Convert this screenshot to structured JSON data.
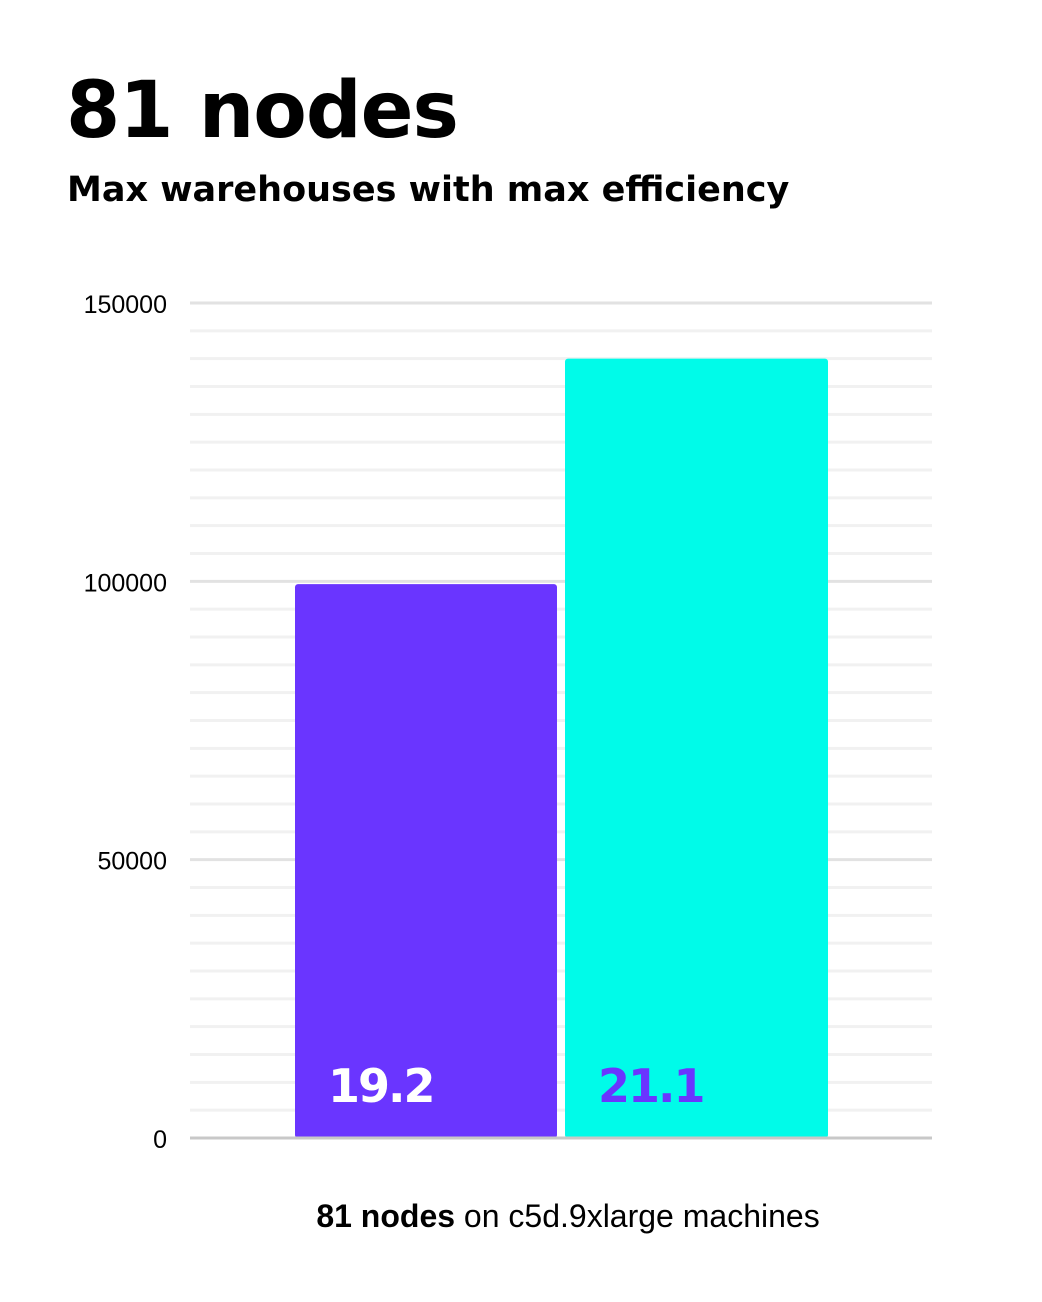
{
  "chart_data": {
    "type": "bar",
    "title": "81 nodes",
    "subtitle": "Max warehouses with max efficiency",
    "categories": [
      "",
      ""
    ],
    "values": [
      99500,
      140000
    ],
    "data_labels": [
      "19.2",
      "21.1"
    ],
    "colors": [
      "#6a35ff",
      "#00fbe9"
    ],
    "label_colors": [
      "#ffffff",
      "#6a35ff"
    ],
    "ylim": [
      0,
      150000
    ],
    "yticks": [
      "0",
      "50000",
      "100000",
      "150000"
    ],
    "minor_grid_step": 5000,
    "grid": true,
    "xlabel_bold": "81 nodes",
    "xlabel_rest": " on c5d.9xlarge machines"
  }
}
